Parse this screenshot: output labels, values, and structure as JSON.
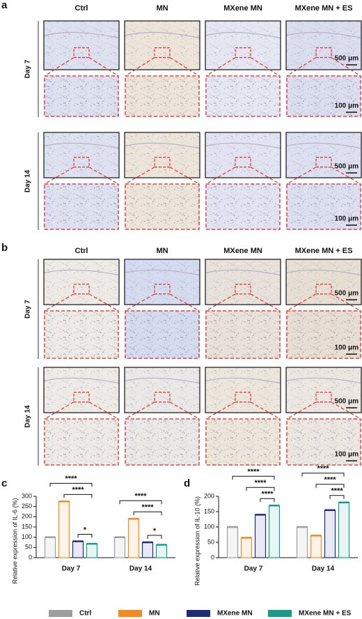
{
  "figure": {
    "a": {
      "letter": "a",
      "columns": [
        "Ctrl",
        "MN",
        "MXene MN",
        "MXene MN + ES"
      ],
      "rows": [
        "Day 7",
        "Day 14"
      ],
      "scale_overview": "500 μm",
      "scale_zoom": "100 μm"
    },
    "b": {
      "letter": "b",
      "columns": [
        "Ctrl",
        "MN",
        "MXene MN",
        "MXene MN + ES"
      ],
      "rows": [
        "Day 7",
        "Day 14"
      ],
      "scale_overview": "500 μm",
      "scale_zoom": "100 μm"
    }
  },
  "chart_data": [
    {
      "type": "bar",
      "panel": "c",
      "ylabel": "Relative expression of IL-6 (%)",
      "categories": [
        "Day 7",
        "Day 14"
      ],
      "series": [
        {
          "name": "Ctrl",
          "color": "#9e9e9e",
          "values": [
            100,
            100
          ]
        },
        {
          "name": "MN",
          "color": "#f28a1e",
          "values": [
            275,
            190
          ]
        },
        {
          "name": "MXene MN",
          "color": "#1f2b7b",
          "values": [
            80,
            75
          ]
        },
        {
          "name": "MXene MN + ES",
          "color": "#169b8b",
          "values": [
            68,
            63
          ]
        }
      ],
      "ylim": [
        0,
        300
      ],
      "yticks": [
        0,
        50,
        100,
        150,
        200,
        250,
        300
      ],
      "annotations": [
        {
          "text": "****",
          "category": 0,
          "from": 0,
          "to": 3
        },
        {
          "text": "****",
          "category": 0,
          "from": 1,
          "to": 3
        },
        {
          "text": "*",
          "category": 0,
          "from": 2,
          "to": 3
        },
        {
          "text": "****",
          "category": 1,
          "from": 0,
          "to": 3
        },
        {
          "text": "****",
          "category": 1,
          "from": 1,
          "to": 3
        },
        {
          "text": "*",
          "category": 1,
          "from": 2,
          "to": 3
        }
      ]
    },
    {
      "type": "bar",
      "panel": "d",
      "ylabel": "Relative expression of IL-10 (%)",
      "categories": [
        "Day 7",
        "Day 14"
      ],
      "series": [
        {
          "name": "Ctrl",
          "color": "#9e9e9e",
          "values": [
            100,
            100
          ]
        },
        {
          "name": "MN",
          "color": "#f28a1e",
          "values": [
            65,
            72
          ]
        },
        {
          "name": "MXene MN",
          "color": "#1f2b7b",
          "values": [
            140,
            155
          ]
        },
        {
          "name": "MXene MN + ES",
          "color": "#169b8b",
          "values": [
            170,
            180
          ]
        }
      ],
      "ylim": [
        0,
        200
      ],
      "yticks": [
        0,
        50,
        100,
        150,
        200
      ],
      "annotations": [
        {
          "text": "****",
          "category": 0,
          "from": 0,
          "to": 3
        },
        {
          "text": "****",
          "category": 0,
          "from": 1,
          "to": 3
        },
        {
          "text": "****",
          "category": 0,
          "from": 2,
          "to": 3
        },
        {
          "text": "****",
          "category": 1,
          "from": 0,
          "to": 3
        },
        {
          "text": "****",
          "category": 1,
          "from": 1,
          "to": 3
        },
        {
          "text": "****",
          "category": 1,
          "from": 2,
          "to": 3
        }
      ]
    }
  ]
}
